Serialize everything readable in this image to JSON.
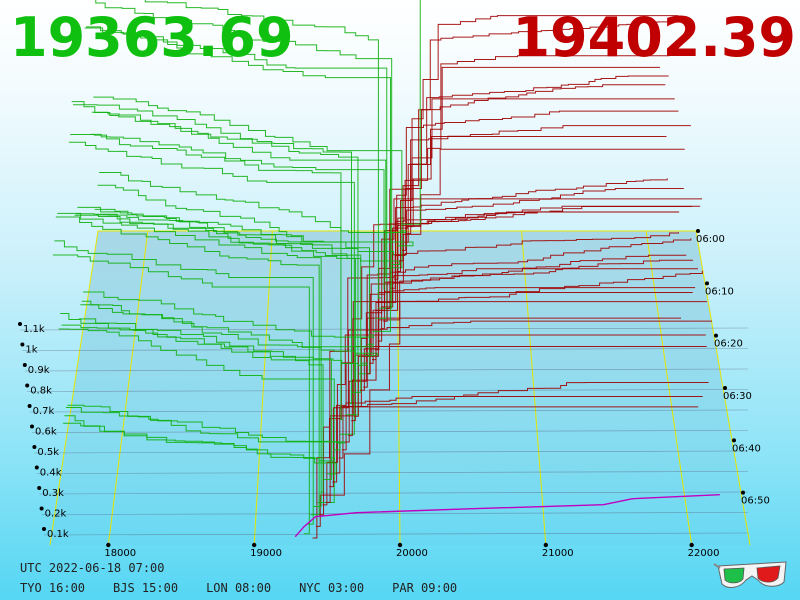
{
  "prices": {
    "bid": "19363.69",
    "ask": "19402.39",
    "bid_color": "#10c010",
    "ask_color": "#c00000"
  },
  "footer": {
    "utc": "UTC 2022-06-18 07:00",
    "zones": [
      "TYO 16:00",
      "BJS 15:00",
      "LON 08:00",
      "NYC 03:00",
      "PAR 09:00"
    ]
  },
  "icons": {
    "glasses": "3d-glasses-icon"
  },
  "chart_data": {
    "type": "3d-depth-chart",
    "title": "",
    "x_axis": {
      "label": "",
      "ticks": [
        18000,
        19000,
        20000,
        21000,
        22000
      ],
      "tick_labels": [
        "18000",
        "19000",
        "20000",
        "21000",
        "22000"
      ]
    },
    "y_axis": {
      "label": "",
      "ticks": [
        100,
        200,
        300,
        400,
        500,
        600,
        700,
        800,
        900,
        1000,
        1100
      ],
      "tick_labels": [
        "0.1k",
        "0.2k",
        "0.3k",
        "0.4k",
        "0.5k",
        "0.6k",
        "0.7k",
        "0.8k",
        "0.9k",
        "1k",
        "1.1k"
      ]
    },
    "time_axis": {
      "tick_labels": [
        "06:00",
        "06:10",
        "06:20",
        "06:30",
        "06:40",
        "06:50"
      ]
    },
    "series": [
      {
        "side": "bid",
        "color": "#10b010"
      },
      {
        "side": "ask",
        "color": "#a00000"
      }
    ],
    "latest_curve_color": "#c000c0",
    "grid_color": "#e6e600",
    "legend": "none"
  }
}
